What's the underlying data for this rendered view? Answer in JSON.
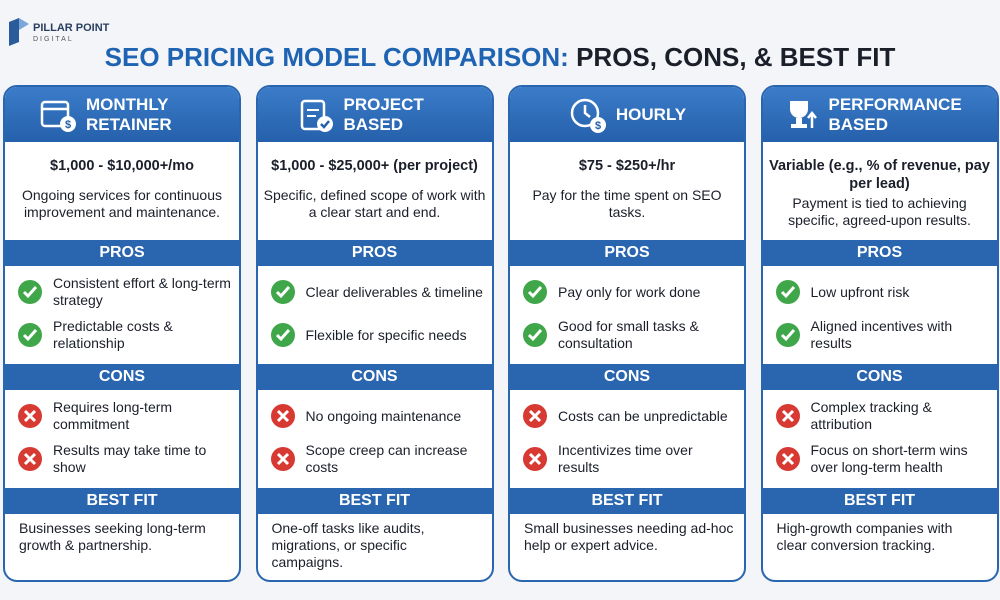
{
  "logo": {
    "name": "PILLAR POINT",
    "tagline": "DIGITAL"
  },
  "title": {
    "highlight": "SEO PRICING MODEL COMPARISON:",
    "rest": "PROS, CONS, & BEST FIT"
  },
  "section_labels": {
    "pros": "PROS",
    "cons": "CONS",
    "best_fit": "BEST FIT"
  },
  "cards": [
    {
      "name": "MONTHLY RETAINER",
      "price": "$1,000 - $10,000+/mo",
      "description": "Ongoing services for continuous improvement and maintenance.",
      "pros": [
        "Consistent effort & long-term strategy",
        "Predictable costs & relationship"
      ],
      "cons": [
        "Requires long-term commitment",
        "Results may take time to show"
      ],
      "best_fit": "Businesses seeking long-term growth & partnership."
    },
    {
      "name": "PROJECT BASED",
      "price": "$1,000 - $25,000+ (per project)",
      "description": "Specific, defined scope of work with a clear start and end.",
      "pros": [
        "Clear deliverables & timeline",
        "Flexible for specific needs"
      ],
      "cons": [
        "No ongoing maintenance",
        "Scope creep can increase costs"
      ],
      "best_fit": "One-off tasks like audits, migrations, or specific campaigns."
    },
    {
      "name": "HOURLY",
      "price": "$75 - $250+/hr",
      "description": "Pay for the time spent on SEO tasks.",
      "pros": [
        "Pay only for work done",
        "Good for small tasks & consultation"
      ],
      "cons": [
        "Costs can be unpredictable",
        "Incentivizes time over results"
      ],
      "best_fit": "Small businesses needing ad-hoc help or expert advice."
    },
    {
      "name": "PERFORMANCE BASED",
      "price": "Variable (e.g., % of revenue, pay per lead)",
      "description": "Payment is tied to achieving specific, agreed-upon results.",
      "pros": [
        "Low upfront risk",
        "Aligned incentives with results"
      ],
      "cons": [
        "Complex tracking & attribution",
        "Focus on short-term wins over long-term health"
      ],
      "best_fit": "High-growth companies with clear conversion tracking."
    }
  ]
}
